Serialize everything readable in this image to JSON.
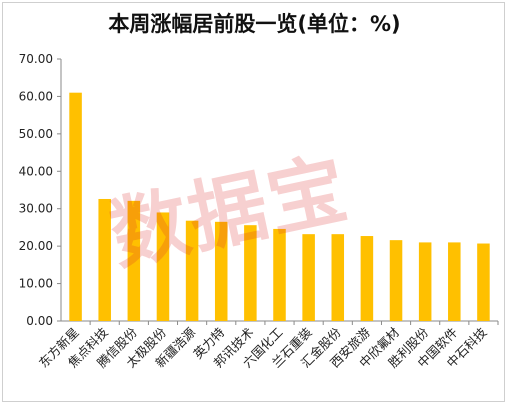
{
  "chart_data": {
    "type": "bar",
    "title": "本周涨幅居前股一览(单位：%)",
    "categories": [
      "东方新星",
      "焦点科技",
      "腾信股份",
      "太极股份",
      "新疆浩源",
      "英力特",
      "邦讯技术",
      "六国化工",
      "兰石重装",
      "汇金股份",
      "西安旅游",
      "中欣氟材",
      "胜利股份",
      "中国软件",
      "中石科技"
    ],
    "values": [
      61.0,
      32.6,
      32.1,
      29.0,
      26.8,
      26.5,
      25.6,
      24.6,
      23.2,
      23.2,
      22.7,
      21.6,
      21.0,
      21.0,
      20.7
    ],
    "ylim": [
      0,
      70
    ],
    "yticks": [
      "0.00",
      "10.00",
      "20.00",
      "30.00",
      "40.00",
      "50.00",
      "60.00",
      "70.00"
    ],
    "grid": false,
    "bar_color": "#FFC000",
    "xlabel": "",
    "ylabel": ""
  },
  "watermark": "数据宝"
}
